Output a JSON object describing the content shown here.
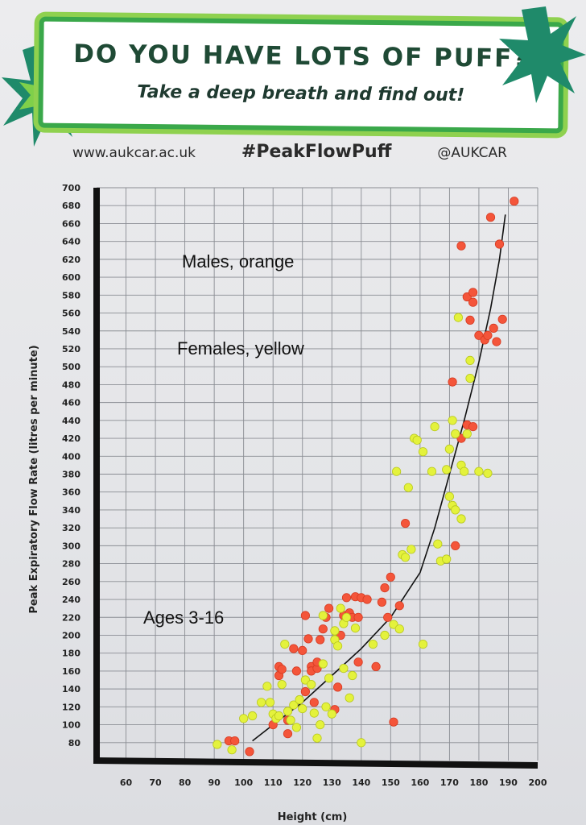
{
  "poster": {
    "title": "DO YOU HAVE LOTS OF PUFF?",
    "subtitle": "Take a deep breath and find out!",
    "website": "www.aukcar.ac.uk",
    "hashtag": "#PeakFlowPuff",
    "handle": "@AUKCAR",
    "colors": {
      "green_border": "#3aa84a",
      "green_light": "#8fd14f",
      "star_dark": "#1f8a6a",
      "star_light": "#7fd04a"
    }
  },
  "annotations": {
    "males": "Males, orange",
    "females": "Females, yellow",
    "ages": "Ages 3-16"
  },
  "chart_data": {
    "type": "scatter",
    "xlabel": "Height (cm)",
    "ylabel": "Peak Expiratory Flow Rate (litres per minute)",
    "xlim": [
      50,
      200
    ],
    "ylim": [
      60,
      700
    ],
    "xticks": [
      60,
      70,
      80,
      90,
      100,
      110,
      120,
      130,
      140,
      150,
      160,
      170,
      180,
      190,
      200
    ],
    "yticks": [
      80,
      100,
      120,
      140,
      160,
      180,
      200,
      220,
      240,
      260,
      280,
      300,
      320,
      340,
      360,
      380,
      400,
      420,
      440,
      460,
      480,
      500,
      520,
      540,
      560,
      580,
      600,
      620,
      640,
      660,
      680,
      700
    ],
    "grid": true,
    "series": [
      {
        "name": "Males, orange",
        "color": "#f4553a",
        "points": [
          [
            95,
            82
          ],
          [
            97,
            82
          ],
          [
            102,
            70
          ],
          [
            110,
            100
          ],
          [
            112,
            155
          ],
          [
            112,
            165
          ],
          [
            113,
            162
          ],
          [
            115,
            90
          ],
          [
            115,
            105
          ],
          [
            117,
            185
          ],
          [
            118,
            160
          ],
          [
            120,
            183
          ],
          [
            121,
            222
          ],
          [
            121,
            137
          ],
          [
            122,
            196
          ],
          [
            123,
            165
          ],
          [
            123,
            160
          ],
          [
            124,
            125
          ],
          [
            125,
            163
          ],
          [
            125,
            170
          ],
          [
            126,
            195
          ],
          [
            127,
            207
          ],
          [
            128,
            220
          ],
          [
            129,
            230
          ],
          [
            131,
            117
          ],
          [
            132,
            142
          ],
          [
            133,
            200
          ],
          [
            134,
            222
          ],
          [
            135,
            242
          ],
          [
            136,
            225
          ],
          [
            137,
            220
          ],
          [
            138,
            243
          ],
          [
            139,
            170
          ],
          [
            140,
            242
          ],
          [
            139,
            220
          ],
          [
            142,
            240
          ],
          [
            145,
            165
          ],
          [
            147,
            237
          ],
          [
            148,
            253
          ],
          [
            149,
            220
          ],
          [
            150,
            265
          ],
          [
            151,
            103
          ],
          [
            153,
            233
          ],
          [
            155,
            325
          ],
          [
            171,
            483
          ],
          [
            172,
            300
          ],
          [
            174,
            635
          ],
          [
            176,
            578
          ],
          [
            177,
            552
          ],
          [
            178,
            572
          ],
          [
            178,
            583
          ],
          [
            180,
            535
          ],
          [
            182,
            530
          ],
          [
            183,
            535
          ],
          [
            184,
            667
          ],
          [
            185,
            543
          ],
          [
            186,
            528
          ],
          [
            187,
            637
          ],
          [
            188,
            553
          ],
          [
            192,
            685
          ],
          [
            174,
            420
          ],
          [
            176,
            435
          ],
          [
            178,
            433
          ]
        ]
      },
      {
        "name": "Females, yellow",
        "color": "#e4f23c",
        "points": [
          [
            91,
            78
          ],
          [
            96,
            72
          ],
          [
            100,
            107
          ],
          [
            103,
            110
          ],
          [
            106,
            125
          ],
          [
            108,
            143
          ],
          [
            109,
            125
          ],
          [
            110,
            112
          ],
          [
            111,
            107
          ],
          [
            112,
            110
          ],
          [
            113,
            145
          ],
          [
            114,
            190
          ],
          [
            115,
            115
          ],
          [
            116,
            105
          ],
          [
            117,
            122
          ],
          [
            118,
            97
          ],
          [
            119,
            128
          ],
          [
            120,
            118
          ],
          [
            121,
            150
          ],
          [
            123,
            145
          ],
          [
            124,
            113
          ],
          [
            125,
            85
          ],
          [
            126,
            100
          ],
          [
            127,
            168
          ],
          [
            127,
            222
          ],
          [
            128,
            120
          ],
          [
            129,
            152
          ],
          [
            130,
            112
          ],
          [
            131,
            205
          ],
          [
            131,
            195
          ],
          [
            132,
            188
          ],
          [
            133,
            230
          ],
          [
            134,
            163
          ],
          [
            134,
            213
          ],
          [
            135,
            220
          ],
          [
            136,
            130
          ],
          [
            137,
            155
          ],
          [
            138,
            208
          ],
          [
            140,
            80
          ],
          [
            144,
            190
          ],
          [
            148,
            200
          ],
          [
            151,
            212
          ],
          [
            152,
            383
          ],
          [
            153,
            207
          ],
          [
            154,
            290
          ],
          [
            155,
            287
          ],
          [
            156,
            365
          ],
          [
            157,
            296
          ],
          [
            158,
            420
          ],
          [
            159,
            418
          ],
          [
            161,
            190
          ],
          [
            161,
            405
          ],
          [
            164,
            383
          ],
          [
            165,
            433
          ],
          [
            166,
            302
          ],
          [
            167,
            283
          ],
          [
            169,
            285
          ],
          [
            169,
            385
          ],
          [
            170,
            355
          ],
          [
            170,
            408
          ],
          [
            171,
            345
          ],
          [
            171,
            440
          ],
          [
            172,
            340
          ],
          [
            172,
            425
          ],
          [
            173,
            555
          ],
          [
            174,
            390
          ],
          [
            174,
            330
          ],
          [
            175,
            383
          ],
          [
            176,
            425
          ],
          [
            177,
            487
          ],
          [
            177,
            507
          ],
          [
            180,
            383
          ],
          [
            183,
            381
          ]
        ]
      }
    ],
    "trend_line": [
      [
        103,
        82
      ],
      [
        110,
        100
      ],
      [
        120,
        125
      ],
      [
        130,
        155
      ],
      [
        140,
        185
      ],
      [
        150,
        220
      ],
      [
        160,
        270
      ],
      [
        165,
        320
      ],
      [
        170,
        380
      ],
      [
        175,
        440
      ],
      [
        180,
        505
      ],
      [
        184,
        565
      ],
      [
        187,
        620
      ],
      [
        189,
        670
      ]
    ]
  }
}
